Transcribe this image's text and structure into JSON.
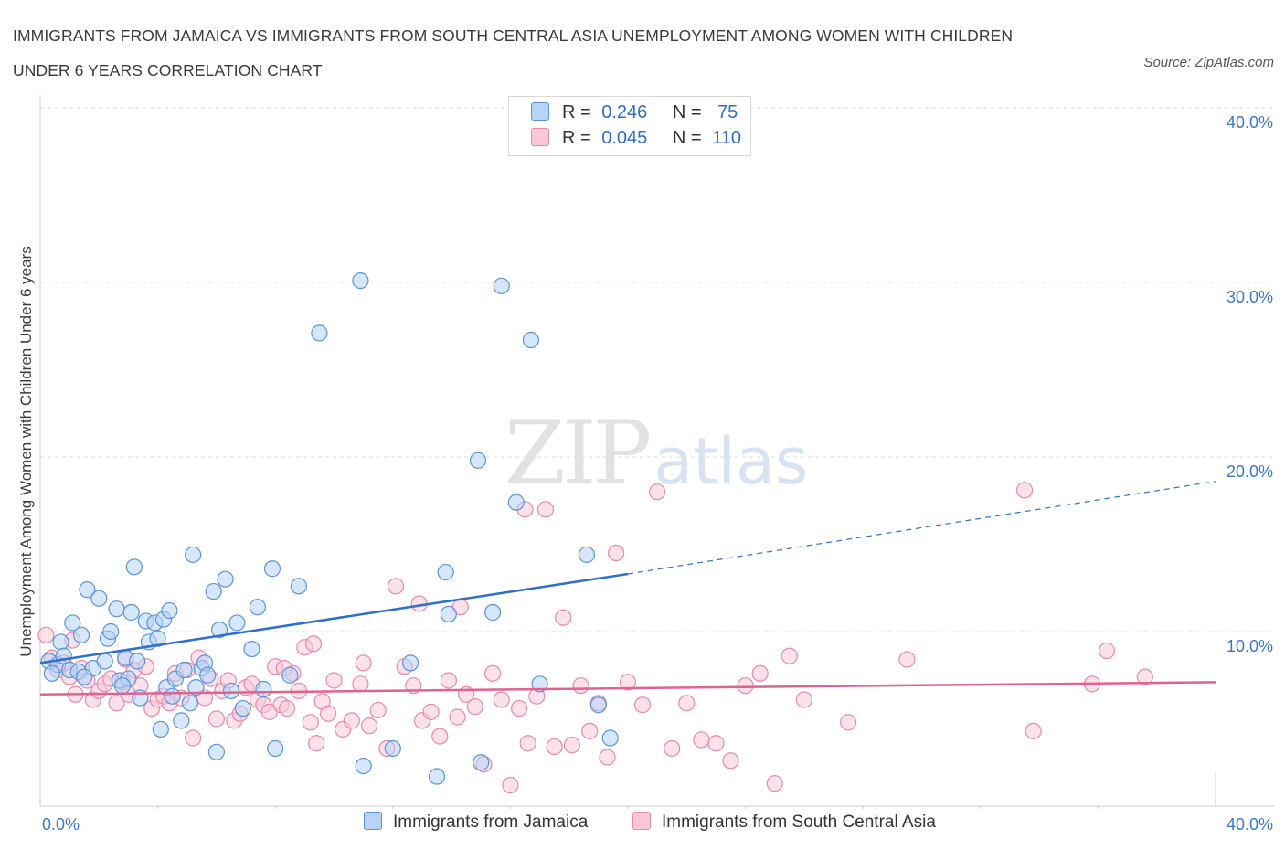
{
  "header": {
    "title_line1": "IMMIGRANTS FROM JAMAICA VS IMMIGRANTS FROM SOUTH CENTRAL ASIA UNEMPLOYMENT AMONG WOMEN WITH CHILDREN",
    "title_line2": "UNDER 6 YEARS CORRELATION CHART",
    "source": "Source: ZipAtlas.com"
  },
  "watermark": {
    "zip": "ZIP",
    "atlas": "atlas"
  },
  "legend": {
    "rows": [
      {
        "r_label": "R =",
        "r_value": "0.246",
        "n_label": "N =",
        "n_value": "75"
      },
      {
        "r_label": "R =",
        "r_value": "0.045",
        "n_label": "N =",
        "n_value": "110"
      }
    ]
  },
  "colors": {
    "jamaica_fill": "#b7d3f5",
    "jamaica_stroke": "#5b93db",
    "jamaica_line": "#2e70cc",
    "sca_fill": "#f8c8d8",
    "sca_stroke": "#e68aa8",
    "sca_line": "#e0628f",
    "tick_text": "#3d78c8",
    "grid": "#dddddd"
  },
  "chart_data": {
    "type": "scatter",
    "ylabel": "Unemployment Among Women with Children Under 6 years",
    "x_tick_labels": [
      "0.0%",
      "40.0%"
    ],
    "y_tick_labels": [
      "10.0%",
      "20.0%",
      "30.0%",
      "40.0%"
    ],
    "y_ticks": [
      10,
      20,
      30,
      40
    ],
    "xlim": [
      0,
      40
    ],
    "ylim": [
      0,
      40
    ],
    "grid": true,
    "legend_position": "bottom",
    "series": [
      {
        "name": "Immigrants from Jamaica",
        "trend": {
          "x0": 0,
          "y0": 8.2,
          "x1": 20,
          "y1": 13.3,
          "dash_to_x": 40,
          "dash_to_y": 18.6
        },
        "points": [
          [
            0.3,
            8.3
          ],
          [
            0.6,
            8.1
          ],
          [
            0.7,
            9.4
          ],
          [
            0.8,
            8.6
          ],
          [
            1.0,
            7.8
          ],
          [
            1.1,
            10.5
          ],
          [
            1.3,
            7.7
          ],
          [
            1.4,
            9.8
          ],
          [
            1.6,
            12.4
          ],
          [
            1.8,
            7.9
          ],
          [
            2.0,
            11.9
          ],
          [
            2.2,
            8.3
          ],
          [
            2.3,
            9.6
          ],
          [
            2.4,
            10.0
          ],
          [
            2.6,
            11.3
          ],
          [
            2.7,
            7.2
          ],
          [
            2.9,
            8.5
          ],
          [
            3.0,
            7.3
          ],
          [
            3.1,
            11.1
          ],
          [
            3.2,
            13.7
          ],
          [
            3.3,
            8.3
          ],
          [
            3.4,
            6.2
          ],
          [
            3.6,
            10.6
          ],
          [
            3.7,
            9.4
          ],
          [
            3.9,
            10.5
          ],
          [
            4.0,
            9.6
          ],
          [
            4.2,
            10.7
          ],
          [
            4.3,
            6.8
          ],
          [
            4.4,
            11.2
          ],
          [
            4.6,
            7.3
          ],
          [
            4.9,
            7.8
          ],
          [
            5.1,
            5.9
          ],
          [
            5.2,
            14.4
          ],
          [
            5.3,
            6.8
          ],
          [
            5.5,
            7.9
          ],
          [
            5.6,
            8.2
          ],
          [
            5.7,
            7.5
          ],
          [
            5.9,
            12.3
          ],
          [
            6.1,
            10.1
          ],
          [
            6.3,
            13.0
          ],
          [
            6.5,
            6.6
          ],
          [
            6.7,
            10.5
          ],
          [
            6.9,
            5.6
          ],
          [
            7.2,
            9.0
          ],
          [
            7.4,
            11.4
          ],
          [
            7.6,
            6.7
          ],
          [
            7.9,
            13.6
          ],
          [
            8.0,
            3.3
          ],
          [
            8.5,
            7.5
          ],
          [
            8.8,
            12.6
          ],
          [
            9.5,
            27.1
          ],
          [
            10.9,
            30.1
          ],
          [
            11.0,
            2.3
          ],
          [
            12.0,
            3.3
          ],
          [
            12.6,
            8.2
          ],
          [
            13.5,
            1.7
          ],
          [
            13.8,
            13.4
          ],
          [
            13.9,
            11.0
          ],
          [
            14.9,
            19.8
          ],
          [
            15.0,
            2.5
          ],
          [
            15.4,
            11.1
          ],
          [
            15.7,
            29.8
          ],
          [
            16.2,
            17.4
          ],
          [
            16.7,
            26.7
          ],
          [
            17.0,
            7.0
          ],
          [
            18.6,
            14.4
          ],
          [
            19.0,
            5.8
          ],
          [
            19.4,
            3.9
          ],
          [
            4.1,
            4.4
          ],
          [
            4.8,
            4.9
          ],
          [
            6.0,
            3.1
          ],
          [
            1.5,
            7.4
          ],
          [
            2.8,
            6.9
          ],
          [
            0.4,
            7.6
          ],
          [
            4.5,
            6.3
          ]
        ]
      },
      {
        "name": "Immigrants from South Central Asia",
        "trend": {
          "x0": 0,
          "y0": 6.4,
          "x1": 40,
          "y1": 7.1
        },
        "points": [
          [
            0.2,
            9.8
          ],
          [
            0.4,
            8.5
          ],
          [
            0.6,
            7.8
          ],
          [
            0.8,
            8.2
          ],
          [
            1.0,
            7.4
          ],
          [
            1.2,
            6.4
          ],
          [
            1.4,
            7.9
          ],
          [
            1.6,
            7.2
          ],
          [
            1.8,
            6.1
          ],
          [
            2.0,
            6.6
          ],
          [
            2.2,
            7.0
          ],
          [
            2.4,
            7.3
          ],
          [
            2.6,
            5.9
          ],
          [
            2.8,
            7.1
          ],
          [
            3.0,
            6.4
          ],
          [
            3.2,
            7.8
          ],
          [
            3.4,
            6.9
          ],
          [
            3.6,
            8.0
          ],
          [
            3.8,
            5.6
          ],
          [
            4.0,
            6.1
          ],
          [
            4.2,
            6.3
          ],
          [
            4.4,
            5.9
          ],
          [
            4.6,
            7.6
          ],
          [
            4.8,
            6.2
          ],
          [
            5.0,
            7.8
          ],
          [
            5.2,
            3.9
          ],
          [
            5.4,
            8.5
          ],
          [
            5.6,
            6.2
          ],
          [
            5.8,
            7.3
          ],
          [
            6.0,
            5.0
          ],
          [
            6.2,
            6.6
          ],
          [
            6.4,
            7.2
          ],
          [
            6.6,
            4.9
          ],
          [
            6.8,
            5.3
          ],
          [
            7.0,
            6.8
          ],
          [
            7.2,
            7.0
          ],
          [
            7.4,
            6.1
          ],
          [
            7.6,
            5.8
          ],
          [
            7.8,
            5.4
          ],
          [
            8.0,
            8.0
          ],
          [
            8.2,
            5.8
          ],
          [
            8.4,
            5.6
          ],
          [
            8.6,
            7.6
          ],
          [
            8.8,
            6.6
          ],
          [
            9.0,
            9.1
          ],
          [
            9.2,
            4.8
          ],
          [
            9.4,
            3.6
          ],
          [
            9.6,
            6.0
          ],
          [
            9.8,
            5.3
          ],
          [
            10.0,
            7.2
          ],
          [
            10.3,
            4.4
          ],
          [
            10.6,
            4.9
          ],
          [
            10.9,
            7.0
          ],
          [
            11.2,
            4.6
          ],
          [
            11.5,
            5.5
          ],
          [
            11.8,
            3.3
          ],
          [
            12.1,
            12.6
          ],
          [
            12.4,
            8.0
          ],
          [
            12.7,
            6.9
          ],
          [
            13.0,
            4.9
          ],
          [
            13.3,
            5.4
          ],
          [
            13.6,
            4.0
          ],
          [
            13.9,
            7.2
          ],
          [
            14.2,
            5.1
          ],
          [
            14.5,
            6.4
          ],
          [
            14.8,
            5.7
          ],
          [
            15.1,
            2.4
          ],
          [
            15.4,
            7.6
          ],
          [
            15.7,
            6.1
          ],
          [
            16.0,
            1.2
          ],
          [
            16.3,
            5.6
          ],
          [
            16.6,
            3.6
          ],
          [
            16.9,
            6.3
          ],
          [
            17.2,
            17.0
          ],
          [
            17.5,
            3.4
          ],
          [
            17.8,
            10.8
          ],
          [
            18.1,
            3.5
          ],
          [
            18.4,
            6.9
          ],
          [
            18.7,
            4.3
          ],
          [
            19.0,
            5.9
          ],
          [
            19.3,
            2.8
          ],
          [
            19.6,
            14.5
          ],
          [
            20.0,
            7.1
          ],
          [
            20.5,
            5.8
          ],
          [
            21.0,
            18.0
          ],
          [
            21.5,
            3.3
          ],
          [
            22.0,
            5.9
          ],
          [
            22.5,
            3.8
          ],
          [
            23.0,
            3.6
          ],
          [
            23.5,
            2.6
          ],
          [
            24.0,
            6.9
          ],
          [
            24.5,
            7.6
          ],
          [
            25.0,
            1.3
          ],
          [
            25.5,
            8.6
          ],
          [
            26.0,
            6.1
          ],
          [
            27.5,
            4.8
          ],
          [
            29.5,
            8.4
          ],
          [
            33.5,
            18.1
          ],
          [
            33.8,
            4.3
          ],
          [
            35.8,
            7.0
          ],
          [
            36.3,
            8.9
          ],
          [
            37.6,
            7.4
          ],
          [
            16.5,
            17.0
          ],
          [
            12.9,
            11.6
          ],
          [
            14.3,
            11.4
          ],
          [
            11.0,
            8.2
          ],
          [
            9.3,
            9.3
          ],
          [
            8.3,
            7.9
          ],
          [
            2.9,
            8.4
          ],
          [
            1.1,
            9.5
          ]
        ]
      }
    ]
  }
}
